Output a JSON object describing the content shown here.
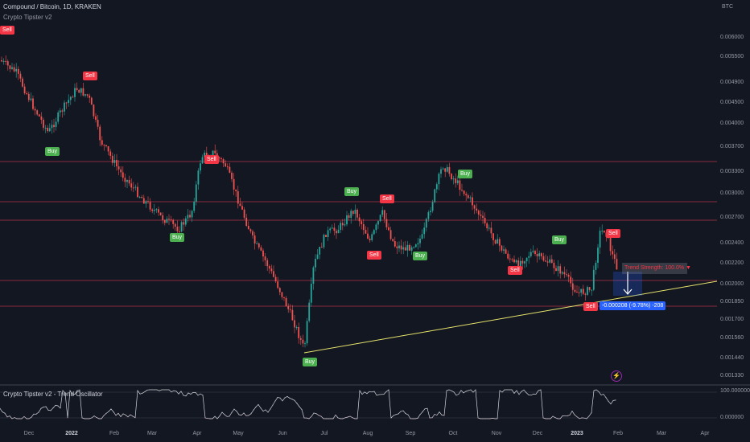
{
  "header": {
    "symbol": "Compound / Bitcoin, 1D, KRAKEN",
    "indicator": "Crypto Tipster v2"
  },
  "price_axis": {
    "currency": "BTC",
    "labels": [
      "0.006000",
      "0.005500",
      "0.004900",
      "0.004500",
      "0.004000",
      "0.003700",
      "0.003300",
      "0.003000",
      "0.002700",
      "0.002400",
      "0.002200",
      "0.002000",
      "0.001850",
      "0.001700",
      "0.001560",
      "0.001440",
      "0.001330"
    ]
  },
  "signals": [
    {
      "type": "sell",
      "label": "Sell"
    },
    {
      "type": "buy",
      "label": "Buy"
    },
    {
      "type": "sell",
      "label": "Sell"
    },
    {
      "type": "buy",
      "label": "Buy"
    },
    {
      "type": "sell",
      "label": "Sell"
    },
    {
      "type": "buy",
      "label": "Buy"
    },
    {
      "type": "sell",
      "label": "Sell"
    },
    {
      "type": "sell",
      "label": "Sell"
    },
    {
      "type": "buy",
      "label": "Buy"
    },
    {
      "type": "buy",
      "label": "Buy"
    },
    {
      "type": "sell",
      "label": "Sell"
    },
    {
      "type": "buy",
      "label": "Buy"
    },
    {
      "type": "sell",
      "label": "Sell"
    },
    {
      "type": "sell",
      "label": "Sell"
    },
    {
      "type": "buy",
      "label": "Buy"
    }
  ],
  "trend_box": "Trend Strength: 100.0% ▼",
  "measure": "-0.000208 (-9.78%) -208",
  "oscillator": {
    "title": "Crypto Tipster v2 - Trend Oscillator",
    "labels": [
      "100.000000",
      "0.000000"
    ]
  },
  "time_axis": [
    "Dec",
    "2022",
    "Feb",
    "Mar",
    "Apr",
    "May",
    "Jun",
    "Jul",
    "Aug",
    "Sep",
    "Oct",
    "Nov",
    "Dec",
    "2023",
    "Feb",
    "Mar",
    "Apr"
  ],
  "colors": {
    "up": "#26a69a",
    "down": "#ef5350",
    "sell": "#f23645",
    "buy": "#4caf50",
    "trendline": "#e6e36b",
    "hline": "#b2334a",
    "measure": "#2962ff"
  }
}
